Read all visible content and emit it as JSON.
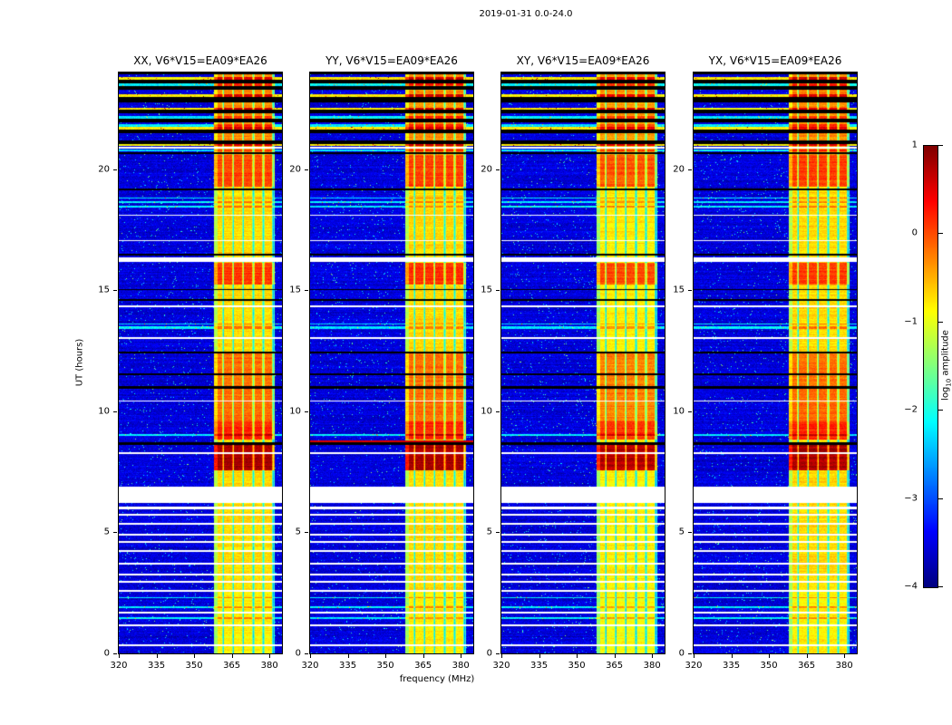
{
  "chart_data": {
    "type": "heatmap",
    "title": "2019-01-31 0.0-24.0",
    "xlabel": "frequency (MHz)",
    "ylabel": "UT (hours)",
    "x_range": [
      320,
      385
    ],
    "y_range": [
      0,
      24
    ],
    "x_ticks": [
      320,
      335,
      350,
      365,
      380
    ],
    "y_ticks": [
      0,
      5,
      10,
      15,
      20
    ],
    "colormap": "jet",
    "color_range": [
      -4,
      1
    ],
    "colorbar": {
      "ticks": [
        1,
        0,
        -1,
        -2,
        -3,
        -4
      ],
      "tick_labels": [
        "1",
        "0",
        "−1",
        "−2",
        "−3",
        "−4"
      ],
      "label_prefix": "log",
      "label_sub": "10",
      "label_suffix": " amplitude"
    },
    "panels": [
      {
        "pol": "XX",
        "title": "XX, V6*V15=EA09*EA26",
        "seed": 11,
        "band_gain": 1.0
      },
      {
        "pol": "YY",
        "title": "YY, V6*V15=EA09*EA26",
        "seed": 22,
        "band_gain": 1.0,
        "extra_rows": [
          {
            "t0": 8.72,
            "t1": 8.79,
            "mode": "red"
          }
        ]
      },
      {
        "pol": "XY",
        "title": "XY, V6*V15=EA09*EA26",
        "seed": 33,
        "band_gain": 0.95
      },
      {
        "pol": "YX",
        "title": "YX, V6*V15=EA09*EA26",
        "seed": 44,
        "band_gain": 1.0
      }
    ],
    "structure": {
      "background": {
        "base": -3.55,
        "sigma": 0.25,
        "speckle_prob": 0.02,
        "speckle_boost": 1.3
      },
      "band": {
        "f0": 358.0,
        "f1": 382.0,
        "base": -0.95,
        "stripe_period": 4,
        "stripe_width": 3,
        "stripe_hi": 0.25,
        "stripe_lo": -0.5
      },
      "band_features": [
        {
          "t0": 0.0,
          "t1": 2.6,
          "value": -1.05
        },
        {
          "t0": 7.55,
          "t1": 8.62,
          "value": 0.55
        },
        {
          "t0": 8.85,
          "t1": 9.6,
          "value": -0.05
        },
        {
          "t0": 9.6,
          "t1": 12.4,
          "value": -0.4
        },
        {
          "t0": 15.25,
          "t1": 16.15,
          "value": -0.15
        },
        {
          "t0": 19.3,
          "t1": 20.6,
          "value": -0.2
        },
        {
          "t0": 20.6,
          "t1": 24.0,
          "value": -0.55
        }
      ],
      "white_gaps": [
        [
          6.2,
          6.9
        ],
        [
          5.95,
          6.05
        ],
        [
          5.7,
          5.78
        ],
        [
          5.32,
          5.4
        ],
        [
          4.86,
          4.94
        ],
        [
          4.57,
          4.65
        ],
        [
          4.19,
          4.27
        ],
        [
          3.67,
          3.75
        ],
        [
          3.22,
          3.3
        ],
        [
          2.92,
          3.0
        ],
        [
          2.54,
          2.62
        ],
        [
          1.64,
          1.72
        ],
        [
          1.12,
          1.2
        ],
        [
          0.3,
          0.38
        ],
        [
          8.25,
          8.33
        ],
        [
          10.4,
          10.46
        ],
        [
          13.0,
          13.06
        ],
        [
          14.3,
          14.36
        ],
        [
          16.18,
          16.38
        ],
        [
          17.02,
          17.08
        ],
        [
          18.08,
          18.14
        ],
        [
          20.85,
          20.93
        ]
      ],
      "rows": [
        {
          "t0": 8.62,
          "t1": 8.72,
          "mode": "black"
        },
        {
          "t0": 10.95,
          "t1": 11.03,
          "mode": "black"
        },
        {
          "t0": 11.5,
          "t1": 11.58,
          "mode": "black"
        },
        {
          "t0": 12.38,
          "t1": 12.46,
          "mode": "black"
        },
        {
          "t0": 14.55,
          "t1": 14.63,
          "mode": "black"
        },
        {
          "t0": 15.0,
          "t1": 15.07,
          "mode": "black"
        },
        {
          "t0": 16.45,
          "t1": 16.52,
          "mode": "black"
        },
        {
          "t0": 19.12,
          "t1": 19.2,
          "mode": "black"
        },
        {
          "t0": 20.62,
          "t1": 20.7,
          "mode": "black"
        },
        {
          "t0": 21.05,
          "t1": 21.2,
          "mode": "black"
        },
        {
          "t0": 21.5,
          "t1": 21.65,
          "mode": "black"
        },
        {
          "t0": 21.95,
          "t1": 22.1,
          "mode": "black"
        },
        {
          "t0": 22.3,
          "t1": 22.45,
          "mode": "black"
        },
        {
          "t0": 22.75,
          "t1": 23.0,
          "mode": "black"
        },
        {
          "t0": 23.3,
          "t1": 23.45,
          "mode": "black"
        },
        {
          "t0": 23.55,
          "t1": 23.7,
          "mode": "black"
        },
        {
          "t0": 23.92,
          "t1": 24.0,
          "mode": "black"
        },
        {
          "t0": 1.42,
          "t1": 1.5,
          "mode": "cyan"
        },
        {
          "t0": 1.88,
          "t1": 1.96,
          "mode": "cyan"
        },
        {
          "t0": 2.28,
          "t1": 2.34,
          "mode": "cyan"
        },
        {
          "t0": 9.0,
          "t1": 9.06,
          "mode": "cyan"
        },
        {
          "t0": 13.42,
          "t1": 13.5,
          "mode": "cyan"
        },
        {
          "t0": 13.58,
          "t1": 13.64,
          "mode": "cyan"
        },
        {
          "t0": 18.42,
          "t1": 18.5,
          "mode": "cyan"
        },
        {
          "t0": 18.6,
          "t1": 18.68,
          "mode": "cyan"
        },
        {
          "t0": 18.78,
          "t1": 18.84,
          "mode": "cyan"
        },
        {
          "t0": 20.75,
          "t1": 20.82,
          "mode": "cyan"
        },
        {
          "t0": 21.75,
          "t1": 21.85,
          "mode": "cyan"
        },
        {
          "t0": 22.1,
          "t1": 22.2,
          "mode": "cyan"
        },
        {
          "t0": 23.45,
          "t1": 23.55,
          "mode": "cyan"
        },
        {
          "t0": 20.95,
          "t1": 21.05,
          "mode": "bright"
        },
        {
          "t0": 21.65,
          "t1": 21.75,
          "mode": "bright"
        },
        {
          "t0": 22.45,
          "t1": 22.55,
          "mode": "bright"
        },
        {
          "t0": 23.0,
          "t1": 23.1,
          "mode": "bright"
        },
        {
          "t0": 23.7,
          "t1": 23.8,
          "mode": "bright"
        }
      ]
    }
  }
}
